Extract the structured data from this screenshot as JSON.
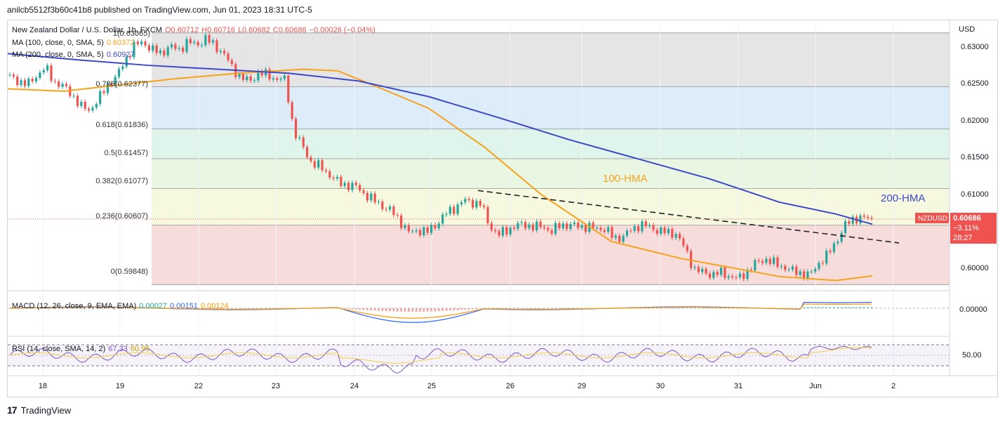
{
  "header": {
    "publisher_text": "anilcb5512f3b60c41b8 published on TradingView.com, Jun 01, 2023 18:31 UTC-5"
  },
  "legend": {
    "symbol": "New Zealand Dollar / U.S. Dollar, 1h, FXCM",
    "open": "O0.60712",
    "high": "H0.60716",
    "low": "L0.60682",
    "close": "C0.60686",
    "change": "−0.00026 (−0.04%)",
    "ma100_label": "MA (100, close, 0, SMA, 5)",
    "ma100_value": "0.60372",
    "ma200_label": "MA (200, close, 0, SMA, 5)",
    "ma200_value": "0.60927",
    "macd_label": "MACD (12, 26, close, 9, EMA, EMA)",
    "macd_v1": "0.00027",
    "macd_v2": "0.00151",
    "macd_v3": "0.00124",
    "rsi_label": "RSI (14, close, SMA, 14, 2)",
    "rsi_v1": "67.33",
    "rsi_v2": "60.95"
  },
  "price_axis": {
    "currency": "USD",
    "ticks": [
      "0.63000",
      "0.62500",
      "0.62000",
      "0.61500",
      "0.61000",
      "0.60000"
    ],
    "last_label": "NZDUSD",
    "last_price": "0.60686",
    "last_change": "−3.11%",
    "countdown": "28:27",
    "macd_tick": "0.00000",
    "rsi_tick": "50.00"
  },
  "time_axis": {
    "ticks": [
      "18",
      "19",
      "22",
      "23",
      "24",
      "25",
      "26",
      "29",
      "30",
      "31",
      "Jun",
      "2"
    ]
  },
  "annotations": {
    "hma100": "100-HMA",
    "hma200": "200-HMA",
    "fib_top": "1(0.63065)",
    "fib_0786": "0.786(0.62377)",
    "fib_0618": "0.618(0.61836)",
    "fib_05": "0.5(0.61457)",
    "fib_0382": "0.382(0.61077)",
    "fib_0236": "0.236(0.60607)",
    "fib_0": "0(0.59848)"
  },
  "footer": {
    "brand": "TradingView"
  },
  "colors": {
    "up": "#26a69a",
    "down": "#ef5350",
    "ma100": "#f7a21b",
    "ma200": "#3d48c9",
    "macd": "#2962ff",
    "signal": "#ff9800",
    "rsi": "#7e57c2"
  },
  "chart_data": {
    "type": "line",
    "title": "New Zealand Dollar / U.S. Dollar, 1h, FXCM",
    "x": [
      "18",
      "19",
      "22",
      "23",
      "24",
      "25",
      "26",
      "29",
      "30",
      "31",
      "Jun",
      "2"
    ],
    "ylim": [
      0.5977,
      0.6318
    ],
    "close_path": [
      0.625,
      0.6245,
      0.624,
      0.6252,
      0.6262,
      0.6244,
      0.6238,
      0.6228,
      0.6212,
      0.6208,
      0.6222,
      0.624,
      0.625,
      0.6272,
      0.629,
      0.6295,
      0.6285,
      0.628,
      0.629,
      0.6284,
      0.6296,
      0.629,
      0.63,
      0.629,
      0.6282,
      0.6262,
      0.625,
      0.6244,
      0.6256,
      0.6252,
      0.6248,
      0.6246,
      0.618,
      0.616,
      0.614,
      0.6135,
      0.6125,
      0.6115,
      0.6112,
      0.611,
      0.61,
      0.6092,
      0.6085,
      0.6078,
      0.6065,
      0.605,
      0.6055,
      0.6052,
      0.6062,
      0.6075,
      0.6082,
      0.6092,
      0.609,
      0.6088,
      0.606,
      0.6048,
      0.6055,
      0.606,
      0.6062,
      0.6058,
      0.606,
      0.6052,
      0.6062,
      0.606,
      0.606,
      0.6058,
      0.6057,
      0.6056,
      0.6044,
      0.6046,
      0.6055,
      0.6062,
      0.6058,
      0.6054,
      0.6051,
      0.605,
      0.603,
      0.6005,
      0.6,
      0.5998,
      0.6,
      0.5996,
      0.5992,
      0.6002,
      0.6012,
      0.6018,
      0.6012,
      0.6008,
      0.6002,
      0.6,
      0.5996,
      0.6012,
      0.6022,
      0.604,
      0.606,
      0.607,
      0.607,
      0.6069
    ],
    "series": [
      {
        "name": "MA (100, close, 0, SMA, 5)",
        "last": 0.60372
      },
      {
        "name": "MA (200, close, 0, SMA, 5)",
        "last": 0.60927
      }
    ],
    "fib_levels": [
      {
        "ratio": 1,
        "price": 0.63065
      },
      {
        "ratio": 0.786,
        "price": 0.62377
      },
      {
        "ratio": 0.618,
        "price": 0.61836
      },
      {
        "ratio": 0.5,
        "price": 0.61457
      },
      {
        "ratio": 0.382,
        "price": 0.61077
      },
      {
        "ratio": 0.236,
        "price": 0.60607
      },
      {
        "ratio": 0,
        "price": 0.59848
      }
    ],
    "trendline": [
      [
        0.6105,
        0.6038
      ]
    ],
    "last_price": 0.60686,
    "rsi_last": 67.33,
    "macd_last": 0.00027
  }
}
